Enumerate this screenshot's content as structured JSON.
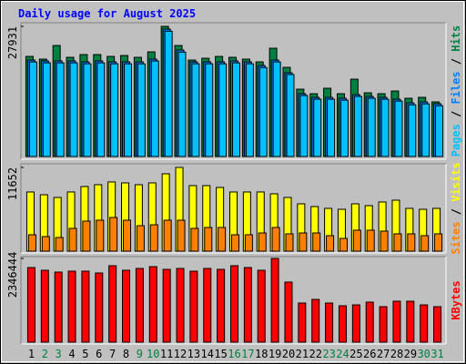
{
  "chart_data": [
    {
      "type": "bar",
      "title": "Daily usage for August 2025",
      "ylim": [
        0,
        27931
      ],
      "yticks": [
        27931
      ],
      "legend_separator": " / ",
      "series": [
        {
          "name": "Pages",
          "color": "#00c0ff",
          "values": [
            20300,
            20100,
            20100,
            20100,
            19900,
            20100,
            19900,
            19900,
            19900,
            20500,
            26900,
            22400,
            19900,
            19900,
            19900,
            20100,
            19900,
            19100,
            20300,
            17600,
            13100,
            12300,
            12300,
            12100,
            12900,
            12500,
            12300,
            11900,
            11100,
            11300,
            10900
          ]
        },
        {
          "name": "Files",
          "color": "#0080ff",
          "values": [
            20700,
            20510,
            20510,
            20510,
            20310,
            20510,
            20310,
            20310,
            20310,
            20900,
            27340,
            22850,
            20310,
            20310,
            20310,
            20510,
            20310,
            19530,
            20700,
            17970,
            13480,
            12690,
            12690,
            12500,
            13280,
            12890,
            12690,
            12300,
            11520,
            11720,
            11330
          ]
        },
        {
          "name": "Hits",
          "color": "#008040",
          "values": [
            21484,
            20900,
            23830,
            21290,
            21875,
            21875,
            21484,
            21680,
            21290,
            22460,
            27931,
            23830,
            20700,
            21090,
            21484,
            21290,
            20900,
            20310,
            23240,
            19140,
            14450,
            13480,
            14650,
            13480,
            16600,
            13670,
            13480,
            14060,
            12500,
            12700,
            11720
          ]
        }
      ]
    },
    {
      "type": "bar",
      "ylim": [
        0,
        11652
      ],
      "yticks": [
        11652
      ],
      "legend_separator": " / ",
      "series": [
        {
          "name": "Sites",
          "color": "#ff8000",
          "values": [
            2281,
            2027,
            1900,
            3168,
            4181,
            4308,
            4688,
            4308,
            3548,
            3674,
            4308,
            4308,
            3168,
            3294,
            3294,
            2281,
            2281,
            2534,
            3294,
            2407,
            2534,
            2534,
            2154,
            1774,
            2914,
            2914,
            2787,
            2407,
            2407,
            2154,
            2407
          ]
        },
        {
          "name": "Visits",
          "color": "#ffff00",
          "values": [
            8236,
            7855,
            7475,
            8236,
            8996,
            9249,
            9629,
            9503,
            9249,
            9503,
            10770,
            11652,
            9122,
            9122,
            8869,
            8236,
            8236,
            8236,
            7982,
            7475,
            6588,
            6208,
            5955,
            5828,
            6588,
            6335,
            6842,
            7095,
            5955,
            5828,
            5955
          ]
        }
      ]
    },
    {
      "type": "bar",
      "ylim": [
        0,
        2346444
      ],
      "yticks": [
        2346444
      ],
      "categories": [
        "1",
        "2",
        "3",
        "4",
        "5",
        "6",
        "7",
        "8",
        "9",
        "10",
        "11",
        "12",
        "13",
        "14",
        "15",
        "16",
        "17",
        "18",
        "19",
        "20",
        "21",
        "22",
        "23",
        "24",
        "25",
        "26",
        "27",
        "28",
        "29",
        "30",
        "31"
      ],
      "category_colors": [
        "#000000",
        "#008040",
        "#008040",
        "#000000",
        "#000000",
        "#000000",
        "#000000",
        "#000000",
        "#008040",
        "#008040",
        "#000000",
        "#000000",
        "#000000",
        "#000000",
        "#000000",
        "#008040",
        "#008040",
        "#000000",
        "#000000",
        "#000000",
        "#000000",
        "#000000",
        "#008040",
        "#008040",
        "#000000",
        "#000000",
        "#000000",
        "#000000",
        "#000000",
        "#008040",
        "#008040"
      ],
      "series": [
        {
          "name": "KBytes",
          "color": "#ff0000",
          "values": [
            2091400,
            2014900,
            1963900,
            1989400,
            1989400,
            1938400,
            2142400,
            2014900,
            2065900,
            2116900,
            2040400,
            2065900,
            1989400,
            2065900,
            2040400,
            2142400,
            2091400,
            2014900,
            2346444,
            1683300,
            1096700,
            1198700,
            1096700,
            1020200,
            1045700,
            1122200,
            994700,
            1147700,
            1147700,
            1045700,
            994700
          ]
        }
      ]
    }
  ]
}
